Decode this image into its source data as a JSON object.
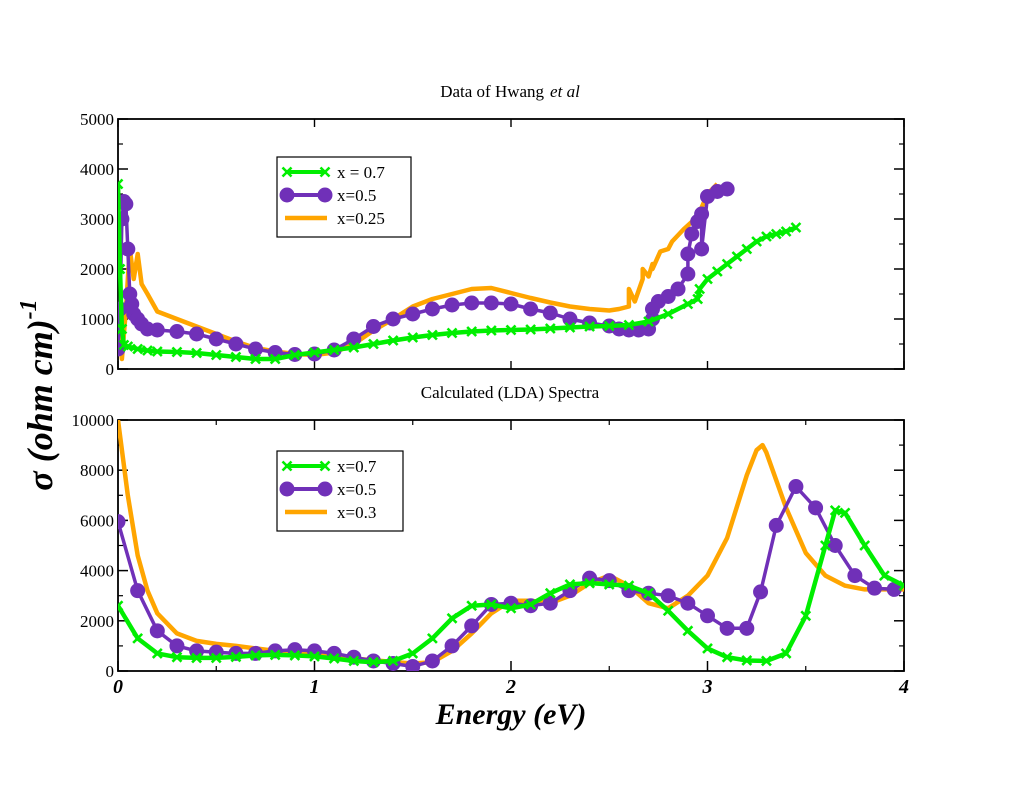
{
  "chart_data": [
    {
      "type": "line",
      "title": "Data of Hwang",
      "title_italic": "et al",
      "xlabel": "Energy (eV)",
      "ylabel": "σ (ohm cm)",
      "ylabel_exponent": "-1",
      "xlim": [
        0,
        4
      ],
      "ylim": [
        0,
        5000
      ],
      "yticks": [
        0,
        1000,
        2000,
        3000,
        4000,
        5000
      ],
      "ytick_labels": [
        "0",
        "1000",
        "2000",
        "3000",
        "4000",
        "5000"
      ],
      "legend_position": "upper-left-center",
      "series": [
        {
          "name": "x = 0.7",
          "color": "#00ee00",
          "marker": "x",
          "x": [
            0.0,
            0.01,
            0.02,
            0.03,
            0.05,
            0.1,
            0.15,
            0.2,
            0.3,
            0.4,
            0.5,
            0.6,
            0.7,
            0.8,
            0.9,
            1.0,
            1.1,
            1.2,
            1.3,
            1.4,
            1.5,
            1.6,
            1.7,
            1.8,
            1.9,
            2.0,
            2.1,
            2.2,
            2.3,
            2.4,
            2.5,
            2.6,
            2.7,
            2.8,
            2.9,
            2.95,
            2.96,
            3.0,
            3.05,
            3.1,
            3.15,
            3.2,
            3.25,
            3.3,
            3.35,
            3.4,
            3.45
          ],
          "y": [
            3700,
            2000,
            800,
            480,
            450,
            400,
            370,
            350,
            340,
            320,
            280,
            240,
            200,
            200,
            280,
            330,
            380,
            430,
            500,
            570,
            630,
            680,
            720,
            750,
            770,
            780,
            790,
            810,
            830,
            850,
            860,
            880,
            950,
            1100,
            1300,
            1400,
            1600,
            1800,
            1950,
            2100,
            2250,
            2400,
            2550,
            2650,
            2700,
            2750,
            2830
          ]
        },
        {
          "name": "x=0.5",
          "color": "#7030b8",
          "marker": "circle",
          "x": [
            0.0,
            0.01,
            0.02,
            0.03,
            0.04,
            0.05,
            0.06,
            0.07,
            0.08,
            0.1,
            0.12,
            0.15,
            0.2,
            0.3,
            0.4,
            0.5,
            0.6,
            0.7,
            0.8,
            0.9,
            1.0,
            1.1,
            1.2,
            1.3,
            1.4,
            1.5,
            1.6,
            1.7,
            1.8,
            1.9,
            2.0,
            2.1,
            2.2,
            2.3,
            2.4,
            2.5,
            2.55,
            2.6,
            2.65,
            2.7,
            2.72,
            2.72,
            2.75,
            2.8,
            2.85,
            2.9,
            2.9,
            2.92,
            2.95,
            2.97,
            2.97,
            3.0,
            3.05,
            3.1
          ],
          "y": [
            400,
            1200,
            3000,
            3350,
            3300,
            2400,
            1500,
            1300,
            1100,
            1000,
            900,
            800,
            780,
            750,
            700,
            600,
            500,
            400,
            330,
            290,
            300,
            380,
            600,
            850,
            1000,
            1100,
            1200,
            1280,
            1320,
            1320,
            1300,
            1200,
            1120,
            1000,
            920,
            860,
            800,
            780,
            780,
            800,
            1000,
            1200,
            1350,
            1450,
            1600,
            1900,
            2300,
            2700,
            2950,
            3100,
            2400,
            3450,
            3550,
            3600
          ]
        },
        {
          "name": "x=0.25",
          "color": "#ffa500",
          "marker": "none",
          "x": [
            0.0,
            0.02,
            0.04,
            0.06,
            0.08,
            0.1,
            0.12,
            0.15,
            0.2,
            0.3,
            0.4,
            0.5,
            0.6,
            0.7,
            0.8,
            0.9,
            1.0,
            1.1,
            1.2,
            1.3,
            1.4,
            1.5,
            1.6,
            1.7,
            1.8,
            1.9,
            2.0,
            2.1,
            2.2,
            2.3,
            2.4,
            2.5,
            2.55,
            2.6,
            2.6,
            2.63,
            2.67,
            2.67,
            2.7,
            2.72,
            2.72,
            2.76,
            2.8,
            2.82,
            2.88,
            2.95,
            3.0,
            3.05
          ],
          "y": [
            1200,
            200,
            1200,
            2400,
            1800,
            2300,
            1700,
            1500,
            1150,
            1000,
            850,
            700,
            550,
            420,
            350,
            300,
            280,
            330,
            500,
            770,
            1000,
            1250,
            1400,
            1500,
            1600,
            1620,
            1520,
            1420,
            1330,
            1250,
            1200,
            1170,
            1200,
            1250,
            1600,
            1350,
            1800,
            2000,
            1850,
            2100,
            2000,
            2350,
            2400,
            2550,
            2800,
            3050,
            3500,
            3700
          ]
        }
      ]
    },
    {
      "type": "line",
      "title": "Calculated (LDA) Spectra",
      "xlabel": "Energy (eV)",
      "ylabel": "σ (ohm cm)",
      "ylabel_exponent": "-1",
      "xlim": [
        0,
        4
      ],
      "ylim": [
        0,
        10000
      ],
      "xticks": [
        0,
        1,
        2,
        3,
        4
      ],
      "xtick_labels": [
        "0",
        "1",
        "2",
        "3",
        "4"
      ],
      "yticks": [
        0,
        2000,
        4000,
        6000,
        8000,
        10000
      ],
      "ytick_labels": [
        "0",
        "2000",
        "4000",
        "6000",
        "8000",
        "10000"
      ],
      "legend_position": "upper-left-center",
      "series": [
        {
          "name": "x=0.7",
          "color": "#00ee00",
          "marker": "x",
          "x": [
            0.0,
            0.1,
            0.2,
            0.3,
            0.4,
            0.5,
            0.6,
            0.7,
            0.8,
            0.9,
            1.0,
            1.1,
            1.2,
            1.3,
            1.4,
            1.5,
            1.6,
            1.7,
            1.8,
            1.9,
            2.0,
            2.1,
            2.2,
            2.3,
            2.4,
            2.5,
            2.6,
            2.7,
            2.8,
            2.9,
            3.0,
            3.1,
            3.2,
            3.3,
            3.4,
            3.5,
            3.6,
            3.65,
            3.7,
            3.8,
            3.9,
            4.0
          ],
          "y": [
            2600,
            1300,
            700,
            550,
            520,
            520,
            560,
            620,
            640,
            620,
            580,
            500,
            400,
            350,
            400,
            700,
            1300,
            2100,
            2600,
            2650,
            2500,
            2650,
            3100,
            3450,
            3500,
            3450,
            3400,
            3100,
            2400,
            1600,
            900,
            550,
            420,
            400,
            700,
            2200,
            5000,
            6400,
            6300,
            5000,
            3800,
            3400
          ]
        },
        {
          "name": "x=0.5",
          "color": "#7030b8",
          "marker": "circle",
          "x": [
            0.0,
            0.1,
            0.2,
            0.3,
            0.4,
            0.5,
            0.6,
            0.7,
            0.8,
            0.9,
            1.0,
            1.1,
            1.2,
            1.3,
            1.4,
            1.5,
            1.6,
            1.7,
            1.8,
            1.9,
            2.0,
            2.1,
            2.2,
            2.3,
            2.4,
            2.5,
            2.6,
            2.7,
            2.8,
            2.9,
            3.0,
            3.1,
            3.2,
            3.27,
            3.35,
            3.45,
            3.55,
            3.65,
            3.75,
            3.85,
            3.95
          ],
          "y": [
            5950,
            3200,
            1600,
            1000,
            800,
            750,
            700,
            700,
            800,
            850,
            800,
            700,
            550,
            400,
            300,
            180,
            400,
            1000,
            1800,
            2650,
            2700,
            2600,
            2700,
            3200,
            3700,
            3600,
            3200,
            3100,
            3000,
            2700,
            2200,
            1700,
            1700,
            3150,
            5800,
            7350,
            6500,
            5000,
            3800,
            3300,
            3250
          ]
        },
        {
          "name": "x=0.3",
          "color": "#ffa500",
          "marker": "none",
          "x": [
            0.0,
            0.05,
            0.1,
            0.15,
            0.2,
            0.3,
            0.4,
            0.5,
            0.6,
            0.7,
            0.8,
            0.9,
            1.0,
            1.1,
            1.2,
            1.3,
            1.4,
            1.5,
            1.6,
            1.7,
            1.8,
            1.9,
            2.0,
            2.1,
            2.2,
            2.3,
            2.4,
            2.5,
            2.6,
            2.7,
            2.8,
            2.9,
            3.0,
            3.1,
            3.2,
            3.25,
            3.28,
            3.3,
            3.4,
            3.5,
            3.6,
            3.7,
            3.8,
            3.9,
            4.0
          ],
          "y": [
            10000,
            7000,
            4600,
            3200,
            2300,
            1500,
            1200,
            1080,
            1000,
            900,
            800,
            720,
            650,
            580,
            500,
            430,
            360,
            300,
            350,
            800,
            1500,
            2300,
            2800,
            2800,
            2700,
            3000,
            3500,
            3800,
            3400,
            2700,
            2500,
            3000,
            3800,
            5300,
            7800,
            8800,
            9000,
            8700,
            6500,
            4700,
            3800,
            3400,
            3250,
            3250,
            3250
          ]
        }
      ]
    }
  ]
}
